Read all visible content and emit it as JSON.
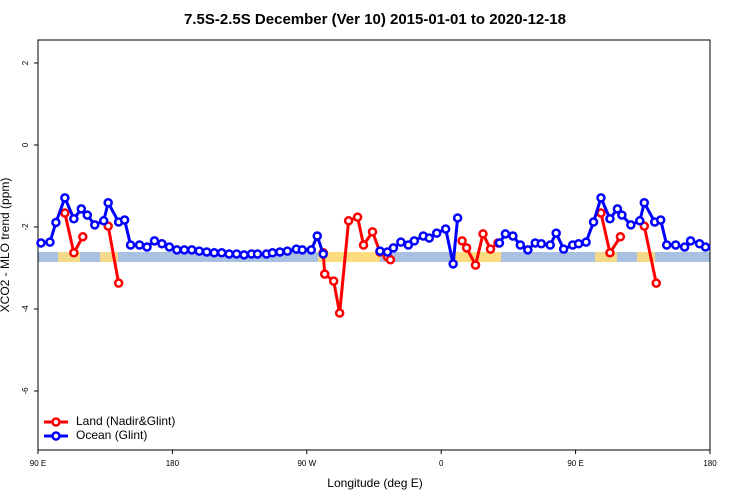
{
  "chart_data": {
    "type": "line",
    "title": "7.5S-2.5S December (Ver 10)   2015-01-01 to 2020-12-18",
    "x_label": "Longitude (deg E)",
    "y_label": "XCO2 - MLO trend (ppm)",
    "xlim": [
      90,
      540
    ],
    "ylim": [
      -7.44,
      2.56
    ],
    "xticks": [
      {
        "value": 90,
        "label": "90 E"
      },
      {
        "value": 180,
        "label": "180"
      },
      {
        "value": 270,
        "label": "90 W"
      },
      {
        "value": 360,
        "label": "0"
      },
      {
        "value": 450,
        "label": "90 E"
      },
      {
        "value": 540,
        "label": "180"
      }
    ],
    "yticks": [
      2,
      0,
      -2,
      -4,
      -6
    ],
    "legend": "bottom-left",
    "series": [
      {
        "name": "Land (Nadir&Glint)",
        "color": "#ff0000",
        "x": [
          108,
          114,
          120,
          null,
          137,
          144,
          null,
          281,
          282,
          288,
          292,
          298,
          304,
          308,
          314,
          319,
          324,
          326,
          null,
          374,
          377,
          383,
          388,
          393,
          398,
          null,
          467,
          473,
          480,
          null,
          496,
          504
        ],
        "values": [
          -1.66,
          -2.63,
          -2.24,
          null,
          -1.98,
          -3.37,
          null,
          -2.63,
          -3.15,
          -3.32,
          -4.1,
          -1.85,
          -1.76,
          -2.44,
          -2.12,
          -2.61,
          -2.73,
          -2.8,
          null,
          -2.34,
          -2.51,
          -2.93,
          -2.17,
          -2.54,
          -2.39,
          null,
          -1.66,
          -2.63,
          -2.24,
          null,
          -1.98,
          -3.37
        ]
      },
      {
        "name": "Ocean (Glint)",
        "color": "#0000ff",
        "x": [
          92,
          98,
          102,
          108,
          114,
          119,
          123,
          128,
          134,
          137,
          144,
          148,
          152,
          158,
          163,
          168,
          173,
          178,
          183,
          188,
          193,
          198,
          203,
          208,
          213,
          218,
          223,
          228,
          233,
          237,
          243,
          247,
          252,
          257,
          263,
          267,
          273,
          277,
          281,
          null,
          319,
          324,
          328,
          333,
          338,
          342,
          348,
          352,
          357,
          363,
          368,
          371,
          null,
          399,
          403,
          408,
          413,
          418,
          423,
          427,
          433,
          437,
          442,
          448,
          452,
          457,
          462,
          467,
          473,
          478,
          481,
          487,
          493,
          496,
          503,
          507,
          511,
          517,
          523,
          527,
          533,
          537
        ],
        "values": [
          -2.39,
          -2.37,
          -1.89,
          -1.29,
          -1.8,
          -1.56,
          -1.71,
          -1.95,
          -1.85,
          -1.41,
          -1.88,
          -1.83,
          -2.44,
          -2.44,
          -2.49,
          -2.34,
          -2.41,
          -2.49,
          -2.56,
          -2.56,
          -2.56,
          -2.59,
          -2.61,
          -2.63,
          -2.63,
          -2.66,
          -2.66,
          -2.68,
          -2.66,
          -2.66,
          -2.66,
          -2.63,
          -2.61,
          -2.59,
          -2.54,
          -2.56,
          -2.56,
          -2.22,
          -2.66,
          null,
          -2.59,
          -2.61,
          -2.51,
          -2.37,
          -2.44,
          -2.34,
          -2.22,
          -2.27,
          -2.15,
          -2.05,
          -2.9,
          -1.78,
          null,
          -2.39,
          -2.17,
          -2.22,
          -2.44,
          -2.56,
          -2.39,
          -2.41,
          -2.44,
          -2.15,
          -2.54,
          -2.44,
          -2.41,
          -2.37,
          -1.88,
          -1.29,
          -1.8,
          -1.56,
          -1.71,
          -1.95,
          -1.85,
          -1.41,
          -1.88,
          -1.83,
          -2.44,
          -2.44,
          -2.49,
          -2.34,
          -2.41,
          -2.49
        ]
      }
    ]
  }
}
